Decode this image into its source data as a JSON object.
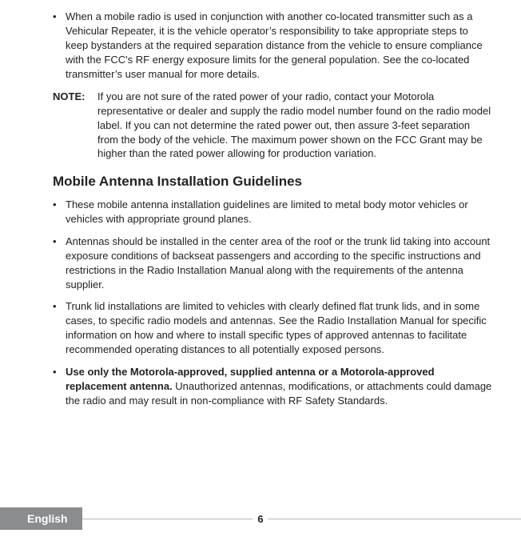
{
  "page": {
    "number": "6",
    "language": "English"
  },
  "intro_bullet": {
    "marker": "•",
    "text": "When a mobile radio is used in conjunction with another co-located transmitter such as a Vehicular Repeater, it is the vehicle operator’s responsibility to take appropriate steps to keep bystanders at the required separation distance from the vehicle to ensure compliance with the FCC's RF energy exposure limits for the general population. See the co-located transmitter’s user manual for more details."
  },
  "note": {
    "label": "NOTE:",
    "text": "If you are not sure of the rated power of your radio, contact your Motorola representative or dealer and supply the radio model number found on the radio model label. If you can not determine the rated power out, then assure 3-feet separation from the body of the vehicle. The maximum power shown on the FCC Grant may be higher than the rated power allowing for production variation."
  },
  "section": {
    "heading": "Mobile Antenna Installation Guidelines",
    "bullets": [
      {
        "marker": "•",
        "text": "These mobile antenna installation guidelines are limited to metal body motor vehicles or vehicles with appropriate ground planes."
      },
      {
        "marker": "•",
        "text": "Antennas should be installed in the center area of the roof or the trunk lid taking into account exposure conditions of backseat passengers and according to the specific instructions and restrictions in the Radio Installation Manual along with the requirements of the antenna supplier."
      },
      {
        "marker": "•",
        "text": "Trunk lid installations are limited to vehicles with clearly defined flat trunk lids, and in some cases, to specific radio models and antennas. See the Radio Installation Manual for specific information on how and where to install specific types of approved antennas to facilitate recommended operating distances to all potentially exposed persons."
      },
      {
        "marker": "•",
        "bold_lead": "Use only the Motorola-approved, supplied antenna or a Motorola-approved replacement antenna.",
        "rest": " Unauthorized antennas, modifications, or attachments could damage the radio and may result in non-compliance with RF Safety Standards."
      }
    ]
  }
}
